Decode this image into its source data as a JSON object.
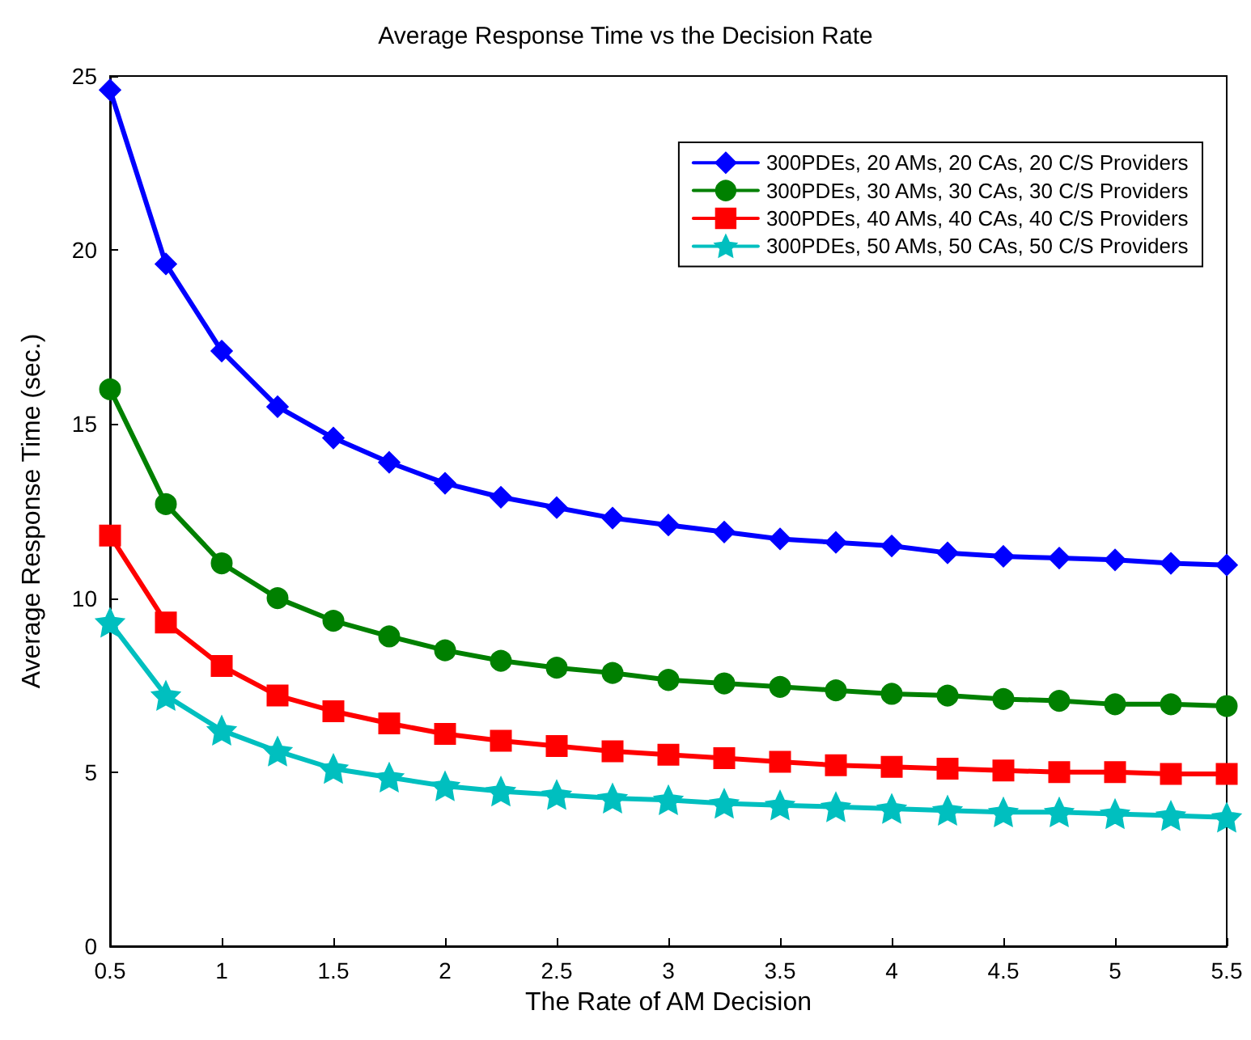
{
  "chart_data": {
    "type": "line",
    "title": "Average Response Time vs the Decision Rate",
    "xlabel": "The Rate of AM Decision",
    "ylabel": "Average Response Time (sec.)",
    "x": [
      0.5,
      0.75,
      1,
      1.25,
      1.5,
      1.75,
      2,
      2.25,
      2.5,
      2.75,
      3,
      3.25,
      3.5,
      3.75,
      4,
      4.25,
      4.5,
      4.75,
      5,
      5.25,
      5.5
    ],
    "series": [
      {
        "name": "300PDEs, 20 AMs, 20 CAs, 20 C/S Providers",
        "color": "#0000ff",
        "marker": "diamond",
        "values": [
          24.6,
          19.6,
          17.1,
          15.5,
          14.6,
          13.9,
          13.3,
          12.9,
          12.6,
          12.3,
          12.1,
          11.9,
          11.7,
          11.6,
          11.5,
          11.3,
          11.2,
          11.15,
          11.1,
          11.0,
          10.95
        ]
      },
      {
        "name": "300PDEs, 30 AMs, 30 CAs, 30 C/S Providers",
        "color": "#008000",
        "marker": "circle",
        "values": [
          16.0,
          12.7,
          11.0,
          10.0,
          9.35,
          8.9,
          8.5,
          8.2,
          8.0,
          7.85,
          7.65,
          7.55,
          7.45,
          7.35,
          7.25,
          7.2,
          7.1,
          7.05,
          6.95,
          6.95,
          6.9
        ]
      },
      {
        "name": "300PDEs, 40 AMs, 40 CAs, 40 C/S Providers",
        "color": "#ff0000",
        "marker": "square",
        "values": [
          11.8,
          9.3,
          8.05,
          7.2,
          6.75,
          6.4,
          6.1,
          5.9,
          5.75,
          5.6,
          5.5,
          5.4,
          5.3,
          5.2,
          5.15,
          5.1,
          5.05,
          5.0,
          5.0,
          4.95,
          4.95
        ]
      },
      {
        "name": "300PDEs, 50 AMs, 50 CAs, 50 C/S Providers",
        "color": "#00bfbf",
        "marker": "star",
        "values": [
          9.3,
          7.2,
          6.2,
          5.6,
          5.1,
          4.85,
          4.6,
          4.45,
          4.35,
          4.25,
          4.2,
          4.1,
          4.05,
          4.0,
          3.95,
          3.9,
          3.85,
          3.85,
          3.8,
          3.75,
          3.7
        ]
      }
    ],
    "xlim": [
      0.5,
      5.5
    ],
    "xticks": [
      0.5,
      1,
      1.5,
      2,
      2.5,
      3,
      3.5,
      4,
      4.5,
      5,
      5.5
    ],
    "ylim": [
      0,
      25
    ],
    "yticks": [
      0,
      5,
      10,
      15,
      20,
      25
    ],
    "grid": false,
    "legend": "top right",
    "line_style": "solid"
  }
}
